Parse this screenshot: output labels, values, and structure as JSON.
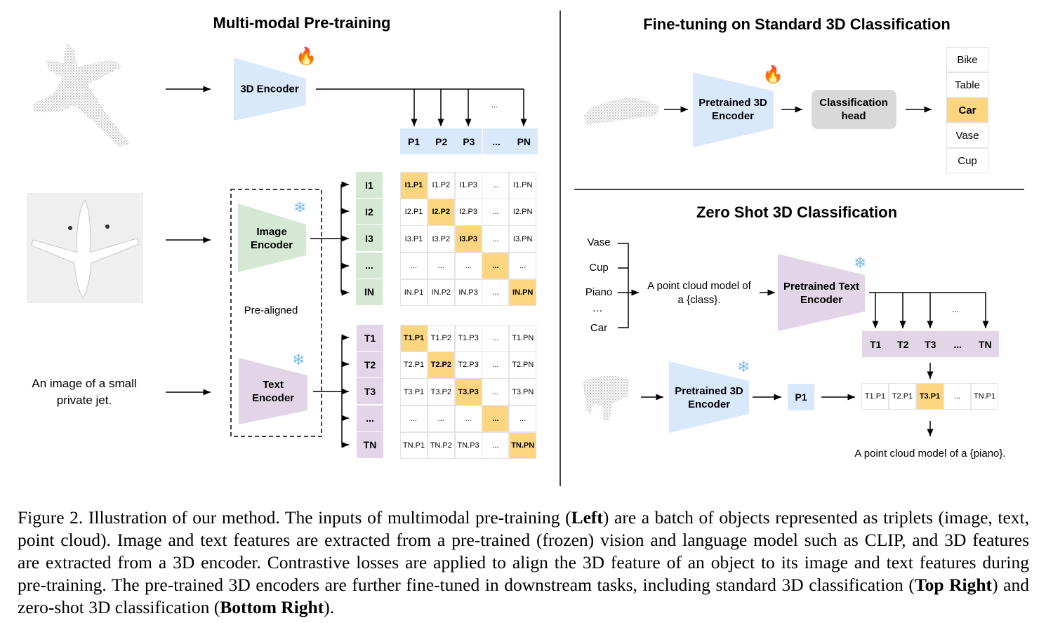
{
  "colors": {
    "blue": "#dae8fc",
    "green": "#d5e8d4",
    "purple": "#e1d5e7",
    "highlight": "#fcd581",
    "head": "#d9d9d9"
  },
  "left": {
    "title": "Multi-modal Pre-training",
    "encoder_3d": "3D Encoder",
    "image_encoder": [
      "Image",
      "Encoder"
    ],
    "text_encoder": [
      "Text",
      "Encoder"
    ],
    "pre_aligned": "Pre-aligned",
    "text_input": [
      "An image of a small",
      "private jet."
    ],
    "ellipsis": "...",
    "point_features": [
      "P1",
      "P2",
      "P3",
      "...",
      "PN"
    ],
    "image_features": [
      "I1",
      "I2",
      "I3",
      "...",
      "IN"
    ],
    "text_features": [
      "T1",
      "T2",
      "T3",
      "...",
      "TN"
    ],
    "image_matrix": [
      [
        "I1.P1",
        "I1.P2",
        "I1.P3",
        "...",
        "I1.PN"
      ],
      [
        "I2.P1",
        "I2.P2",
        "I2.P3",
        "...",
        "I2.PN"
      ],
      [
        "I3.P1",
        "I3.P2",
        "I3.P3",
        "...",
        "I3.PN"
      ],
      [
        "...",
        "...",
        "...",
        "...",
        "..."
      ],
      [
        "IN.P1",
        "IN.P2",
        "IN.P3",
        "...",
        "IN.PN"
      ]
    ],
    "text_matrix": [
      [
        "T1.P1",
        "T1.P2",
        "T1.P3",
        "...",
        "T1.PN"
      ],
      [
        "T2.P1",
        "T2.P2",
        "T2.P3",
        "...",
        "T2.PN"
      ],
      [
        "T3.P1",
        "T3.P2",
        "T3.P3",
        "...",
        "T3.PN"
      ],
      [
        "...",
        "...",
        "...",
        "...",
        "..."
      ],
      [
        "TN.P1",
        "TN.P2",
        "TN.P3",
        "...",
        "TN.PN"
      ]
    ],
    "matrix_highlight": "diagonal"
  },
  "top_right": {
    "title": "Fine-tuning on Standard 3D Classification",
    "encoder": [
      "Pretrained 3D",
      "Encoder"
    ],
    "head": [
      "Classification",
      "head"
    ],
    "classes": [
      "Bike",
      "Table",
      "Car",
      "Vase",
      "Cup"
    ],
    "selected_class": "Car"
  },
  "bottom_right": {
    "title": "Zero Shot 3D Classification",
    "classes": [
      "Vase",
      "Cup",
      "Piano",
      "…",
      "Car"
    ],
    "prompt": [
      "A point cloud model of",
      "a {class}."
    ],
    "text_encoder": [
      "Pretrained Text",
      "Encoder"
    ],
    "ellipsis": "...",
    "text_features": [
      "T1",
      "T2",
      "T3",
      "...",
      "TN"
    ],
    "encoder_3d": [
      "Pretrained 3D",
      "Encoder"
    ],
    "point_feature": "P1",
    "scores": [
      "T1.P1",
      "T2.P1",
      "T3.P1",
      "...",
      "TN.P1"
    ],
    "selected_score": "T3.P1",
    "result": "A point cloud model of a {piano}."
  },
  "caption": {
    "l1a": "Figure 2. Illustration of our method. The inputs of multimodal pre-training (",
    "l1b": "Left",
    "l1c": ") are a batch of objects represented as triplets (image, text,",
    "l2": "point cloud). Image and text features are extracted from a pre-trained (frozen) vision and language model such as CLIP, and 3D features",
    "l3": "are extracted from a 3D encoder. Contrastive losses are applied to align the 3D feature of an object to its image and text features during",
    "l4a": "pre-training. The pre-trained 3D encoders are further fine-tuned in downstream tasks, including standard 3D classification (",
    "l4b": "Top Right",
    "l4c": ") and",
    "l5a": "zero-shot 3D classification (",
    "l5b": "Bottom Right",
    "l5c": ")."
  }
}
